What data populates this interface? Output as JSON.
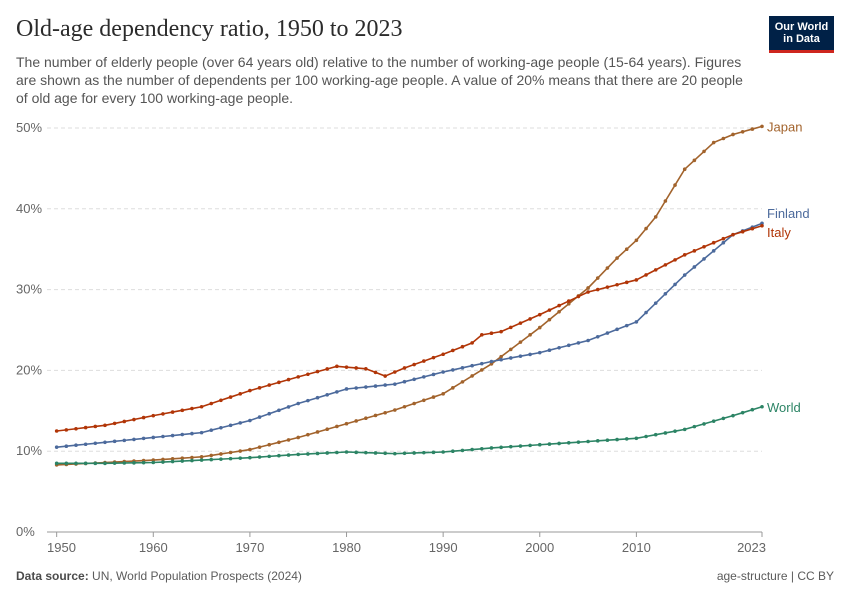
{
  "header": {
    "title": "Old-age dependency ratio, 1950 to 2023",
    "subtitle": "The number of elderly people (over 64 years old) relative to the number of working-age people (15-64 years). Figures are shown as the number of dependents per 100 working-age people. A value of 20% means that there are 20 people of old age for every 100 working-age people."
  },
  "logo": {
    "line1": "Our World",
    "line2": "in Data"
  },
  "footer": {
    "source_label": "Data source:",
    "source_text": "UN, World Population Prospects (2024)",
    "right": "age-structure | CC BY"
  },
  "chart_data": {
    "type": "line",
    "xlim": [
      1949,
      2023
    ],
    "ylim": [
      0,
      50
    ],
    "x_ticks": [
      1950,
      1960,
      1970,
      1980,
      1990,
      2000,
      2010,
      2023
    ],
    "y_ticks": [
      0,
      10,
      20,
      30,
      40,
      50
    ],
    "y_tick_labels": [
      "0%",
      "10%",
      "20%",
      "30%",
      "40%",
      "50%"
    ],
    "grid": "horizontal dashed",
    "series": [
      {
        "name": "Japan",
        "color": "#a2632c",
        "label_color": "#a2632c",
        "x": [
          1950,
          1955,
          1960,
          1965,
          1970,
          1975,
          1980,
          1985,
          1990,
          1995,
          2000,
          2005,
          2008,
          2010,
          2012,
          2015,
          2018,
          2020,
          2023
        ],
        "y": [
          8.3,
          8.6,
          8.9,
          9.3,
          10.2,
          11.7,
          13.4,
          15.1,
          17.1,
          20.8,
          25.3,
          30.2,
          33.9,
          36.1,
          39.0,
          44.9,
          48.2,
          49.2,
          50.2
        ]
      },
      {
        "name": "Finland",
        "color": "#4c6a9c",
        "label_color": "#4c6a9c",
        "x": [
          1950,
          1955,
          1960,
          1965,
          1970,
          1975,
          1980,
          1985,
          1990,
          1995,
          2000,
          2005,
          2010,
          2015,
          2020,
          2023
        ],
        "y": [
          10.5,
          11.1,
          11.7,
          12.3,
          13.8,
          15.9,
          17.7,
          18.3,
          19.8,
          21.1,
          22.2,
          23.7,
          26.0,
          31.8,
          36.8,
          38.2
        ]
      },
      {
        "name": "Italy",
        "color": "#b13507",
        "label_color": "#b13507",
        "x": [
          1950,
          1955,
          1960,
          1965,
          1970,
          1975,
          1979,
          1982,
          1984,
          1986,
          1990,
          1993,
          1994,
          1996,
          2000,
          2005,
          2010,
          2015,
          2020,
          2023
        ],
        "y": [
          12.5,
          13.2,
          14.4,
          15.5,
          17.5,
          19.2,
          20.5,
          20.2,
          19.3,
          20.3,
          22.0,
          23.4,
          24.4,
          24.8,
          26.9,
          29.7,
          31.2,
          34.3,
          36.8,
          37.9
        ]
      },
      {
        "name": "World",
        "color": "#2c8465",
        "label_color": "#2c8465",
        "x": [
          1950,
          1955,
          1960,
          1965,
          1970,
          1975,
          1980,
          1985,
          1990,
          1995,
          2000,
          2005,
          2010,
          2015,
          2020,
          2023
        ],
        "y": [
          8.5,
          8.5,
          8.6,
          8.9,
          9.2,
          9.6,
          9.9,
          9.7,
          9.9,
          10.4,
          10.8,
          11.2,
          11.6,
          12.7,
          14.4,
          15.5
        ]
      }
    ]
  }
}
